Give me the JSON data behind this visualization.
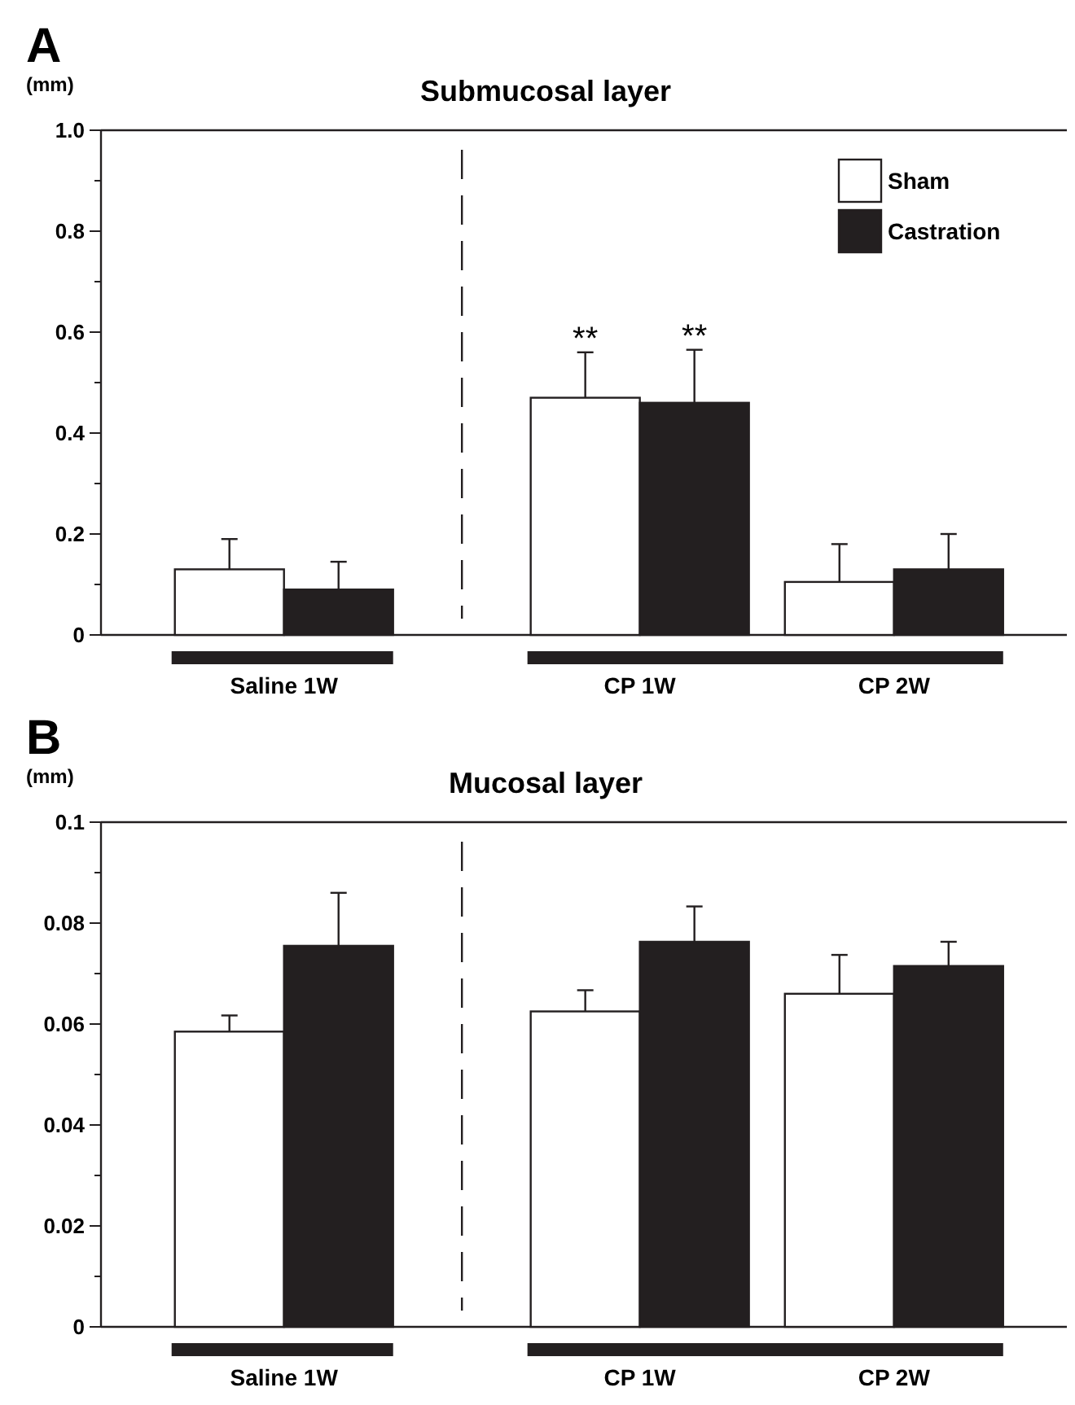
{
  "chart_data": [
    {
      "type": "bar",
      "title": "Submucosal layer",
      "ylabel": "(mm)",
      "annotations": [
        "A",
        "**",
        "**"
      ],
      "categories": [
        "Saline 1W",
        "CP 1W",
        "CP 2W"
      ],
      "series": [
        {
          "name": "Sham",
          "color": "#ffffff",
          "values": [
            0.13,
            0.47,
            0.105
          ],
          "errors": [
            [
              0.13,
              0.19
            ],
            [
              0.47,
              0.56
            ],
            [
              0.105,
              0.18
            ]
          ]
        },
        {
          "name": "Castration",
          "color": "#231f20",
          "values": [
            0.09,
            0.46,
            0.13
          ],
          "errors": [
            [
              0.09,
              0.145
            ],
            [
              0.46,
              0.565
            ],
            [
              0.13,
              0.2
            ]
          ]
        }
      ],
      "ylim": [
        0,
        1
      ],
      "yticks": [
        0,
        {
          "value": 0.1,
          "label": null
        },
        0.2,
        {
          "value": 0.3,
          "label": null
        },
        0.4,
        {
          "value": 0.5,
          "label": null
        },
        0.6,
        {
          "value": 0.7,
          "label": null
        },
        0.8,
        {
          "value": 0.9,
          "label": null
        },
        {
          "value": 1,
          "label": "1.0"
        }
      ],
      "legend": "top right",
      "grid": false
    },
    {
      "type": "bar",
      "title": "Mucosal layer",
      "ylabel": "(mm)",
      "annotations": [
        "B"
      ],
      "categories": [
        "Saline 1W",
        "CP 1W",
        "CP 2W"
      ],
      "series": [
        {
          "color": "#ffffff",
          "values": [
            0.0585,
            0.0625,
            0.066
          ],
          "errors": [
            [
              0.0585,
              0.0617
            ],
            [
              0.0625,
              0.0667
            ],
            [
              0.066,
              0.0737
            ]
          ]
        },
        {
          "color": "#231f20",
          "values": [
            0.0755,
            0.0763,
            0.0715
          ],
          "errors": [
            [
              0.0755,
              0.086
            ],
            [
              0.0763,
              0.0833
            ],
            [
              0.0715,
              0.0763
            ]
          ]
        }
      ],
      "ylim": [
        0,
        0.1
      ],
      "yticks": [
        0,
        {
          "value": 0.01,
          "label": null
        },
        0.02,
        {
          "value": 0.03,
          "label": null
        },
        0.04,
        {
          "value": 0.05,
          "label": null
        },
        0.06,
        {
          "value": 0.07,
          "label": null
        },
        0.08,
        {
          "value": 0.09,
          "label": null
        },
        0.1
      ],
      "grid": false
    }
  ]
}
